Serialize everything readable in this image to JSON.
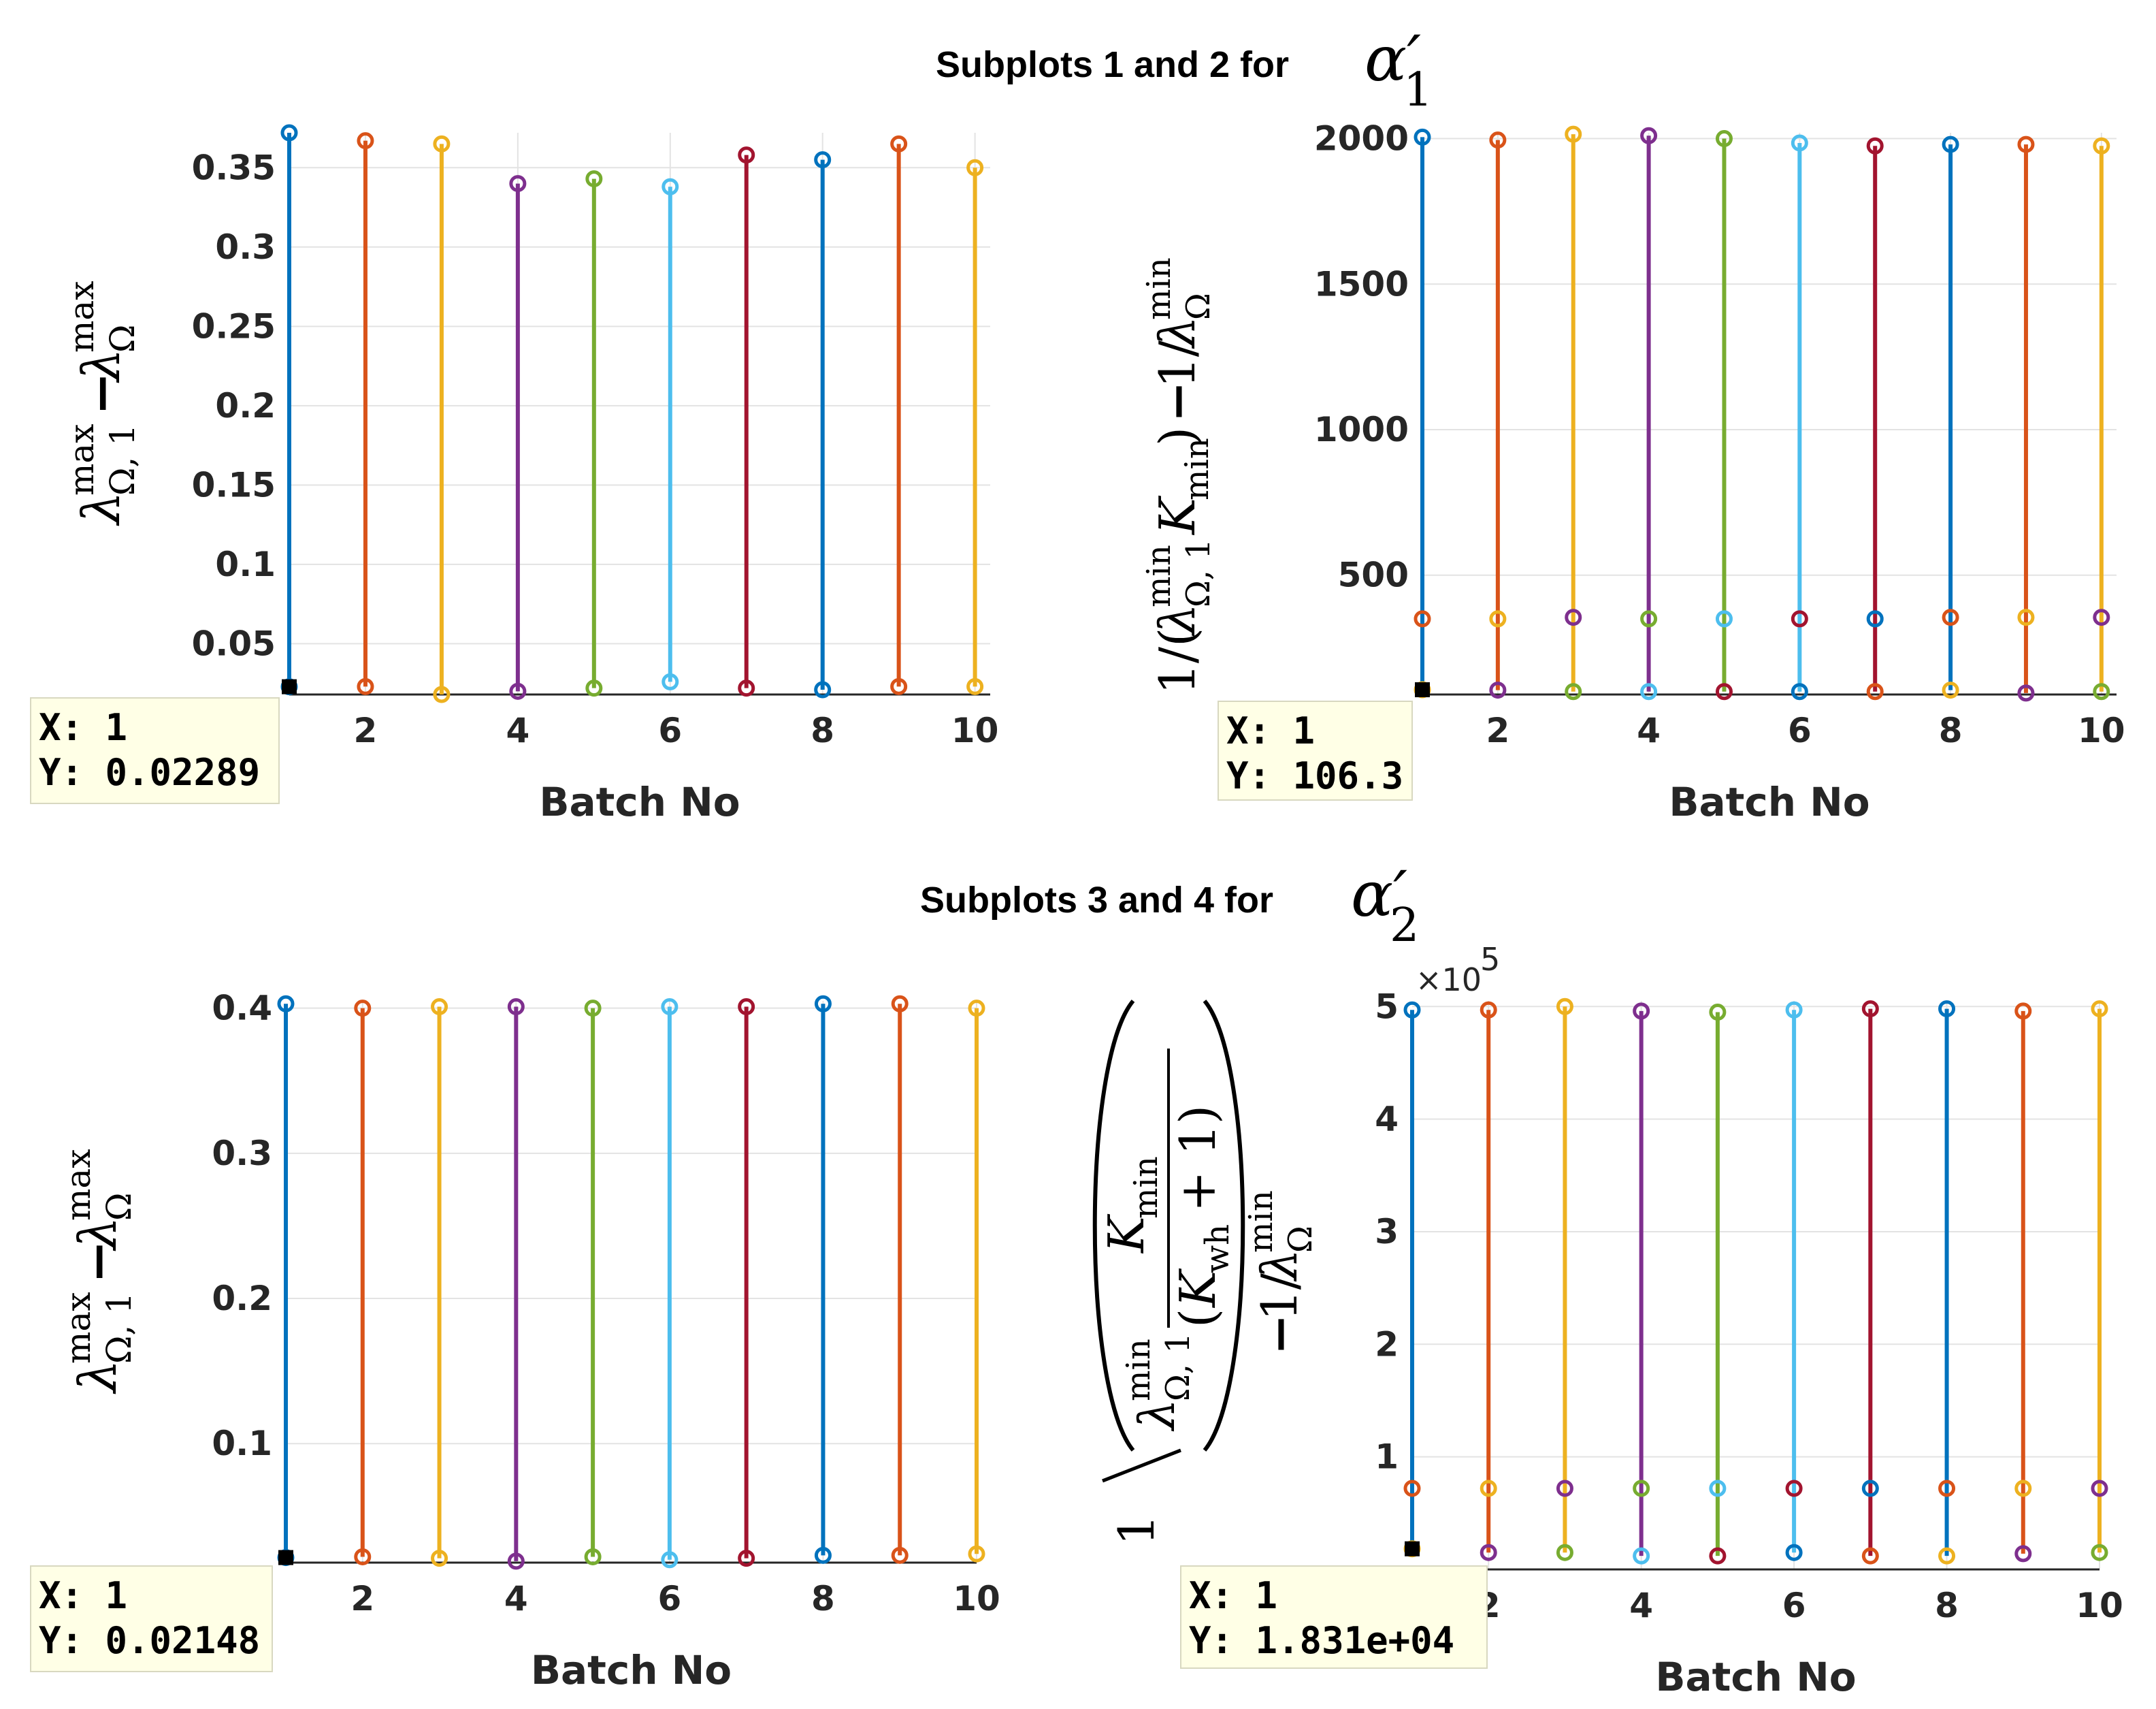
{
  "titles": {
    "top": "Subplots 1 and 2 for",
    "top_symbol": "α′",
    "top_symbol_sub": "1",
    "bottom": "Subplots 3 and 4 for",
    "bottom_symbol": "α′",
    "bottom_symbol_sub": "2"
  },
  "colors": [
    "#0072BD",
    "#D95319",
    "#EDB120",
    "#7E2F8E",
    "#77AC30",
    "#4DBEEE",
    "#A2142F"
  ],
  "chart_data": [
    {
      "type": "stem",
      "id": "subplot-1",
      "xlabel": "Batch No",
      "ylabel": "λ^max_{Ω,1} − λ^max_Ω",
      "xlim": [
        1,
        10.2
      ],
      "ylim": [
        0.018,
        0.372
      ],
      "xticks": [
        2,
        4,
        6,
        8,
        10
      ],
      "yticks": [
        0.05,
        0.1,
        0.15,
        0.2,
        0.25,
        0.3,
        0.35
      ],
      "ytick_labels": [
        "0.05",
        "0.1",
        "0.15",
        "0.2",
        "0.25",
        "0.3",
        "0.35"
      ],
      "grid": true,
      "x": [
        1,
        2,
        3,
        4,
        5,
        6,
        7,
        8,
        9,
        10
      ],
      "top": [
        0.372,
        0.367,
        0.365,
        0.34,
        0.343,
        0.338,
        0.358,
        0.355,
        0.365,
        0.35
      ],
      "bottom": [
        0.02289,
        0.023,
        0.018,
        0.02,
        0.022,
        0.026,
        0.022,
        0.021,
        0.023,
        0.023
      ],
      "datatip": {
        "x": "X: 1",
        "y": "Y: 0.02289"
      }
    },
    {
      "type": "stem",
      "id": "subplot-2",
      "xlabel": "Batch No",
      "ylabel": "1/(λ^min_{Ω,1} K_min) − 1/λ^min_Ω",
      "xlim": [
        1,
        10.2
      ],
      "ylim": [
        90,
        2020
      ],
      "xticks": [
        2,
        4,
        6,
        8,
        10
      ],
      "yticks": [
        500,
        1000,
        1500,
        2000
      ],
      "ytick_labels": [
        "500",
        "1000",
        "1500",
        "2000"
      ],
      "grid": true,
      "x": [
        1,
        2,
        3,
        4,
        5,
        6,
        7,
        8,
        9,
        10
      ],
      "top": [
        2005,
        1995,
        2015,
        2010,
        2000,
        1985,
        1975,
        1980,
        1980,
        1975
      ],
      "middle": [
        350,
        350,
        355,
        350,
        350,
        350,
        350,
        355,
        355,
        355
      ],
      "bottom": [
        106.3,
        105,
        100,
        100,
        100,
        100,
        100,
        105,
        95,
        100
      ],
      "datatip": {
        "x": "X: 1",
        "y": "Y: 106.3"
      }
    },
    {
      "type": "stem",
      "id": "subplot-3",
      "xlabel": "Batch No",
      "ylabel": "λ^max_{Ω,1} − λ^max_Ω",
      "xlim": [
        1,
        10
      ],
      "ylim": [
        0.018,
        0.405
      ],
      "xticks": [
        2,
        4,
        6,
        8,
        10
      ],
      "yticks": [
        0.1,
        0.2,
        0.3,
        0.4
      ],
      "ytick_labels": [
        "0.1",
        "0.2",
        "0.3",
        "0.4"
      ],
      "grid": true,
      "x": [
        1,
        2,
        3,
        4,
        5,
        6,
        7,
        8,
        9,
        10
      ],
      "top": [
        0.403,
        0.4,
        0.401,
        0.401,
        0.4,
        0.401,
        0.401,
        0.403,
        0.403,
        0.4
      ],
      "bottom": [
        0.02148,
        0.022,
        0.021,
        0.019,
        0.022,
        0.02,
        0.021,
        0.023,
        0.023,
        0.024
      ],
      "datatip": {
        "x": "X: 1",
        "y": "Y: 0.02148"
      }
    },
    {
      "type": "stem",
      "id": "subplot-4",
      "xlabel": "Batch No",
      "ylabel": "1/(λ^min_{Ω,1} K_min/(K_wh + 1)) − 1/λ^min_Ω",
      "exponent_label": "×10",
      "exponent_power": "5",
      "xlim": [
        1,
        10
      ],
      "ylim": [
        0,
        505000
      ],
      "xticks": [
        2,
        4,
        6,
        8,
        10
      ],
      "yticks": [
        100000,
        200000,
        300000,
        400000,
        500000
      ],
      "ytick_labels": [
        "1",
        "2",
        "3",
        "4",
        "5"
      ],
      "grid": true,
      "x": [
        1,
        2,
        3,
        4,
        5,
        6,
        7,
        8,
        9,
        10
      ],
      "top": [
        497000,
        497000,
        500000,
        496000,
        495000,
        497000,
        498000,
        498000,
        496000,
        498000
      ],
      "middle": [
        72000,
        72000,
        72000,
        72000,
        72000,
        72000,
        72000,
        72000,
        72000,
        72000
      ],
      "bottom": [
        18310,
        15000,
        15000,
        12000,
        12000,
        15000,
        12000,
        12000,
        14000,
        15000
      ],
      "datatip": {
        "x": "X: 1",
        "y": "Y: 1.831e+04"
      }
    }
  ]
}
